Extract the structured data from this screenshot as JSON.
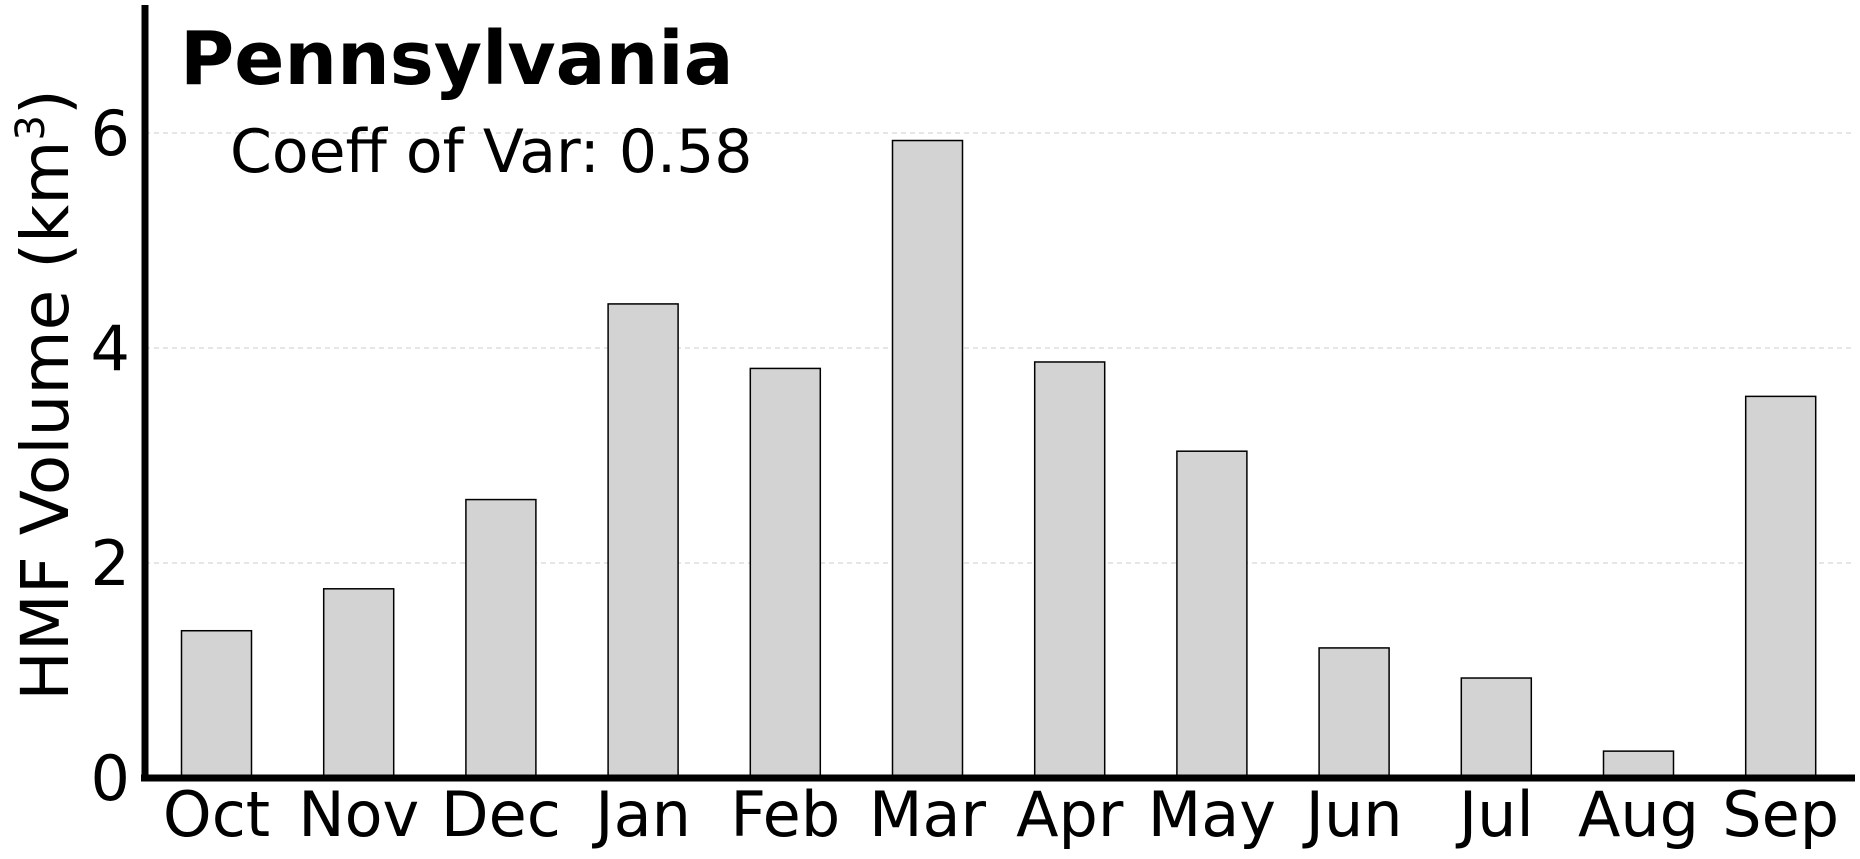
{
  "chart_data": {
    "type": "bar",
    "title": "Pennsylvania",
    "annotation": "Coeff of Var: 0.58",
    "ylabel": "HMF Volume (km",
    "ylabel_superscript": "3",
    "ylabel_suffix": ")",
    "xlabel": "",
    "categories": [
      "Oct",
      "Nov",
      "Dec",
      "Jan",
      "Feb",
      "Mar",
      "Apr",
      "May",
      "Jun",
      "Jul",
      "Aug",
      "Sep"
    ],
    "values": [
      1.37,
      1.76,
      2.59,
      4.41,
      3.81,
      5.93,
      3.87,
      3.04,
      1.21,
      0.93,
      0.25,
      3.55
    ],
    "ylim": [
      0,
      7.2
    ],
    "yticks": [
      0,
      2,
      4,
      6
    ],
    "grid": "horizontal-dashed",
    "legend": "none",
    "bar_color": "#d3d3d3",
    "bar_edge_color": "#000000",
    "grid_color": "#cccccc"
  }
}
